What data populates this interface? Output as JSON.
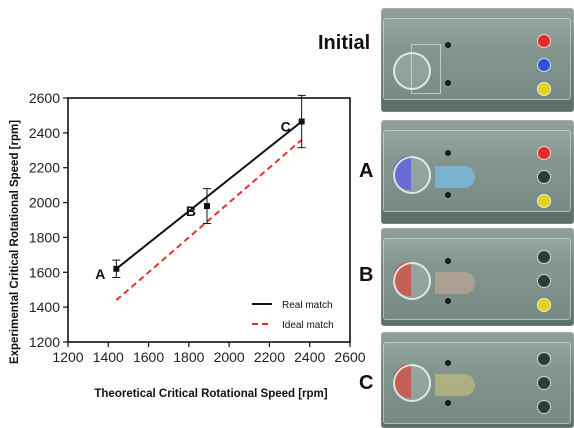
{
  "chart_data": {
    "type": "line",
    "xlabel": "Theoretical Critical Rotational Speed [rpm]",
    "ylabel": "Experimental Critical Rotational Speed [rpm]",
    "xlim": [
      1200,
      2600
    ],
    "ylim": [
      1200,
      2600
    ],
    "xticks": [
      1200,
      1400,
      1600,
      1800,
      2000,
      2200,
      2400,
      2600
    ],
    "yticks": [
      1200,
      1400,
      1600,
      1800,
      2000,
      2200,
      2400,
      2600
    ],
    "x_tick_labels": [
      "1200",
      "1400",
      "1600",
      "1800",
      "2000",
      "2200",
      "2400",
      "2600"
    ],
    "y_tick_labels": [
      "1200",
      "1400",
      "1600",
      "1800",
      "2000",
      "2200",
      "2400",
      "2600"
    ],
    "grid": false,
    "legend_position": "bottom-right",
    "points": [
      {
        "label": "A",
        "x": 1440,
        "y": 1620,
        "err": 50
      },
      {
        "label": "B",
        "x": 1890,
        "y": 1980,
        "err": 100
      },
      {
        "label": "C",
        "x": 2360,
        "y": 2465,
        "err": 150
      }
    ],
    "series": [
      {
        "name": "Real match",
        "style": "solid",
        "color": "#111111",
        "x": [
          1440,
          2360
        ],
        "y": [
          1620,
          2465
        ]
      },
      {
        "name": "Ideal match",
        "style": "dashed",
        "color": "#e8302a",
        "x": [
          1440,
          2360
        ],
        "y": [
          1440,
          2360
        ]
      }
    ]
  },
  "photos": {
    "title": "Initial",
    "rows": [
      "A",
      "B",
      "C"
    ]
  }
}
